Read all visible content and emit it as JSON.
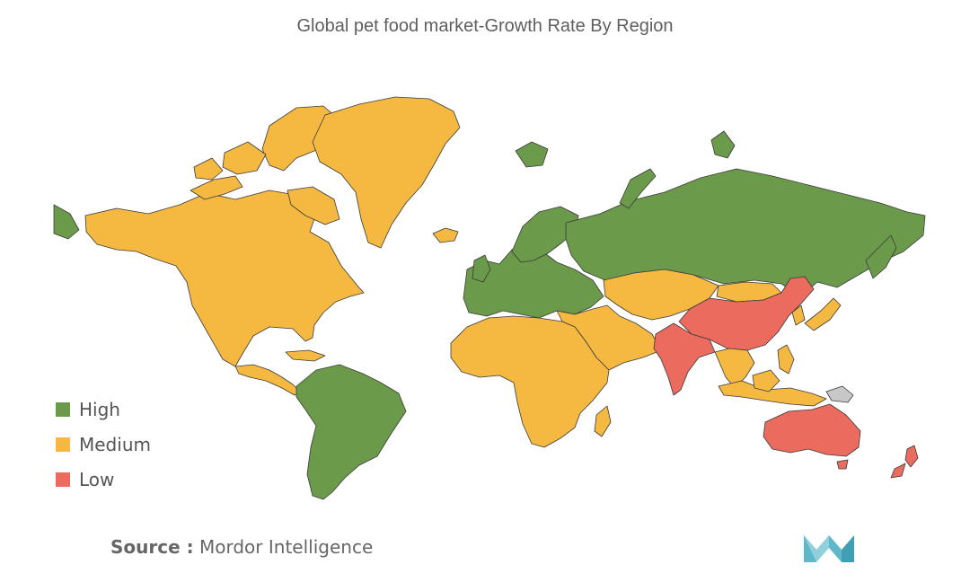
{
  "title": "Global pet food market-Growth Rate By Region",
  "legend": [
    {
      "label": "High",
      "color": "#6b9a4a"
    },
    {
      "label": "Medium",
      "color": "#f5b942"
    },
    {
      "label": "Low",
      "color": "#eb6b5e"
    }
  ],
  "regions": [
    {
      "name": "North America",
      "level": "Medium"
    },
    {
      "name": "Central America",
      "level": "Medium"
    },
    {
      "name": "Greenland",
      "level": "Medium"
    },
    {
      "name": "South America",
      "level": "High"
    },
    {
      "name": "Europe",
      "level": "High"
    },
    {
      "name": "Russia",
      "level": "High"
    },
    {
      "name": "Africa",
      "level": "Medium"
    },
    {
      "name": "Middle East",
      "level": "Medium"
    },
    {
      "name": "Central Asia",
      "level": "Medium"
    },
    {
      "name": "China",
      "level": "Low"
    },
    {
      "name": "India",
      "level": "Low"
    },
    {
      "name": "Japan",
      "level": "Medium"
    },
    {
      "name": "Southeast Asia",
      "level": "Medium"
    },
    {
      "name": "Australia",
      "level": "Low"
    },
    {
      "name": "New Zealand",
      "level": "Low"
    }
  ],
  "source": {
    "label": "Source :",
    "value": "Mordor Intelligence"
  },
  "logo_icon": "mordor-intelligence-logo-icon",
  "colors": {
    "unclassified": "#c8c8c8",
    "border": "#3a3a3a"
  }
}
